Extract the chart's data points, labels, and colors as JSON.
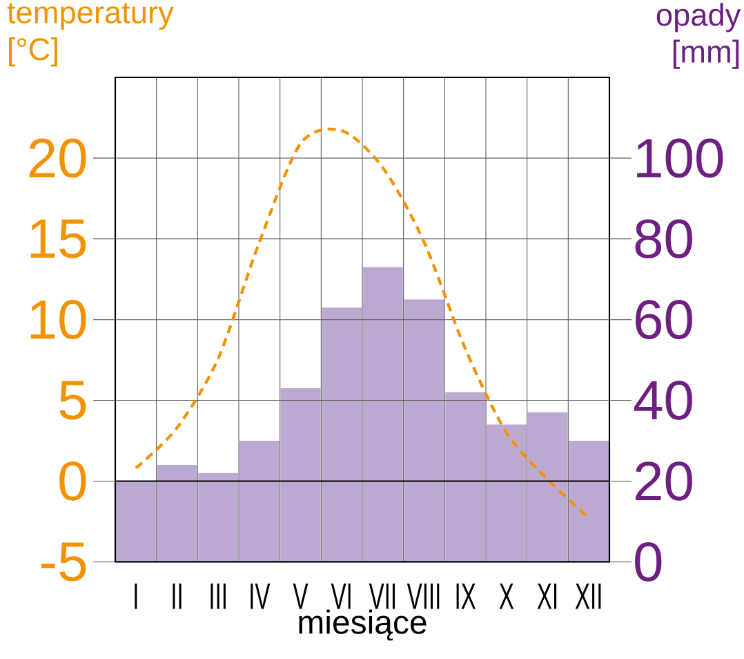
{
  "chart_data": {
    "type": "bar",
    "categories": [
      "I",
      "II",
      "III",
      "IV",
      "V",
      "VI",
      "VII",
      "VIII",
      "IX",
      "X",
      "XI",
      "XII"
    ],
    "xlabel": "miesiące",
    "ylabel": "temperatury [°C]",
    "y2label": "opady [mm]",
    "ylim": [
      -5,
      25
    ],
    "yticks": [
      -5,
      0,
      5,
      10,
      15,
      20
    ],
    "y2lim": [
      0,
      120
    ],
    "y2ticks": [
      0,
      20,
      40,
      60,
      80,
      100
    ],
    "grid": true,
    "ref_lines": [
      {
        "axis": "y",
        "value": 0,
        "color": "#000000"
      }
    ],
    "series": [
      {
        "axis": "y2",
        "color": "#bca9d2",
        "values": [
          20,
          24,
          22,
          30,
          43,
          63,
          73,
          65,
          42,
          34,
          37,
          30
        ]
      },
      {
        "type": "line",
        "color": "#f39200",
        "line_style": "dashed",
        "marker": "none",
        "values": [
          0.8,
          3.3,
          7.6,
          14.8,
          20.9,
          21.7,
          19.4,
          14.8,
          8.2,
          3.0,
          0.1,
          -2.3
        ]
      }
    ]
  }
}
